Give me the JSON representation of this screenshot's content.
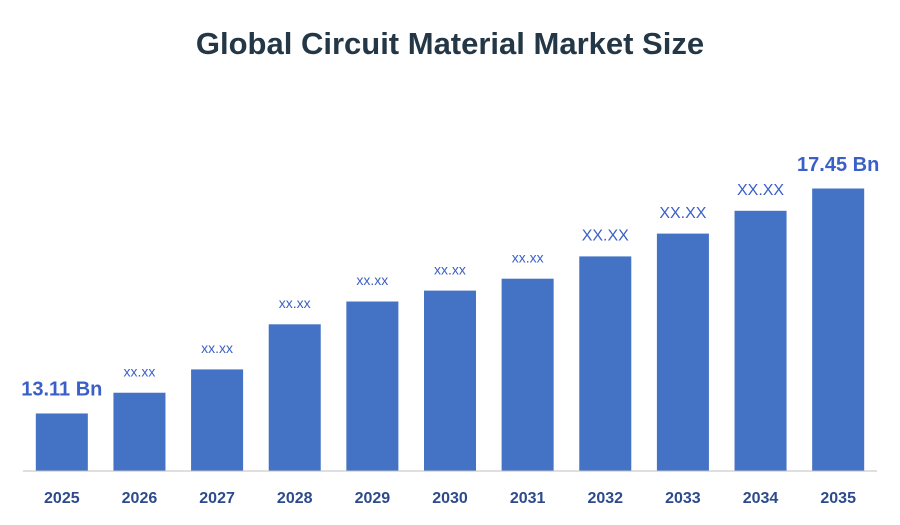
{
  "chart_data": {
    "type": "bar",
    "title": "Global Circuit Material Market Size",
    "categories": [
      "2025",
      "2026",
      "2027",
      "2028",
      "2029",
      "2030",
      "2031",
      "2032",
      "2033",
      "2034",
      "2035"
    ],
    "values": [
      13.11,
      13.51,
      13.96,
      14.83,
      15.27,
      15.48,
      15.71,
      16.14,
      16.58,
      17.02,
      17.45
    ],
    "value_labels": [
      "13.11 Bn",
      "xx.xx",
      "xx.xx",
      "xx.xx",
      "xx.xx",
      "xx.xx",
      "xx.xx",
      "XX.XX",
      "XX.XX",
      "XX.XX",
      "17.45 Bn"
    ],
    "color": "#4472c4",
    "ylim": [
      12,
      18
    ],
    "grid": false
  }
}
